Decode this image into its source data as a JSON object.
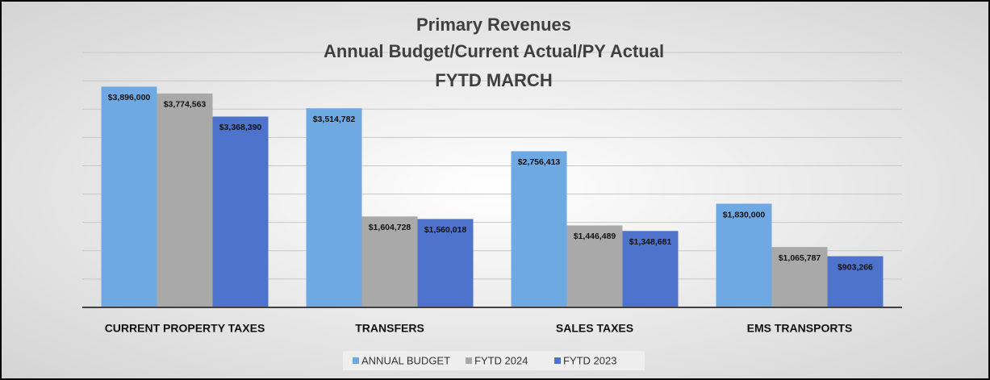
{
  "chart_data": {
    "type": "bar",
    "title": [
      "Primary Revenues",
      "Annual Budget/Current Actual/PY Actual",
      "FYTD MARCH"
    ],
    "categories": [
      "CURRENT PROPERTY TAXES",
      "TRANSFERS",
      "SALES TAXES",
      "EMS TRANSPORTS"
    ],
    "series": [
      {
        "name": "ANNUAL BUDGET",
        "color": "#6ea9e3",
        "values": [
          3896000,
          3514782,
          2756413,
          1830000
        ],
        "value_labels": [
          "$3,896,000",
          "$3,514,782",
          "$2,756,413",
          "$1,830,000"
        ]
      },
      {
        "name": "FYTD 2024",
        "color": "#a9a9a9",
        "values": [
          3774563,
          1604728,
          1446489,
          1065787
        ],
        "value_labels": [
          "$3,774,563",
          "$1,604,728",
          "$1,446,489",
          "$1,065,787"
        ]
      },
      {
        "name": "FYTD 2023",
        "color": "#4e73cc",
        "values": [
          3368390,
          1560018,
          1348681,
          903266
        ],
        "value_labels": [
          "$3,368,390",
          "$1,560,018",
          "$1,348,681",
          "$903,266"
        ]
      }
    ],
    "ylim": [
      0,
      4500000
    ],
    "yticks": [
      0,
      500000,
      1000000,
      1500000,
      2000000,
      2500000,
      3000000,
      3500000,
      4000000,
      4500000
    ],
    "grid": true,
    "legend": "bottom"
  }
}
